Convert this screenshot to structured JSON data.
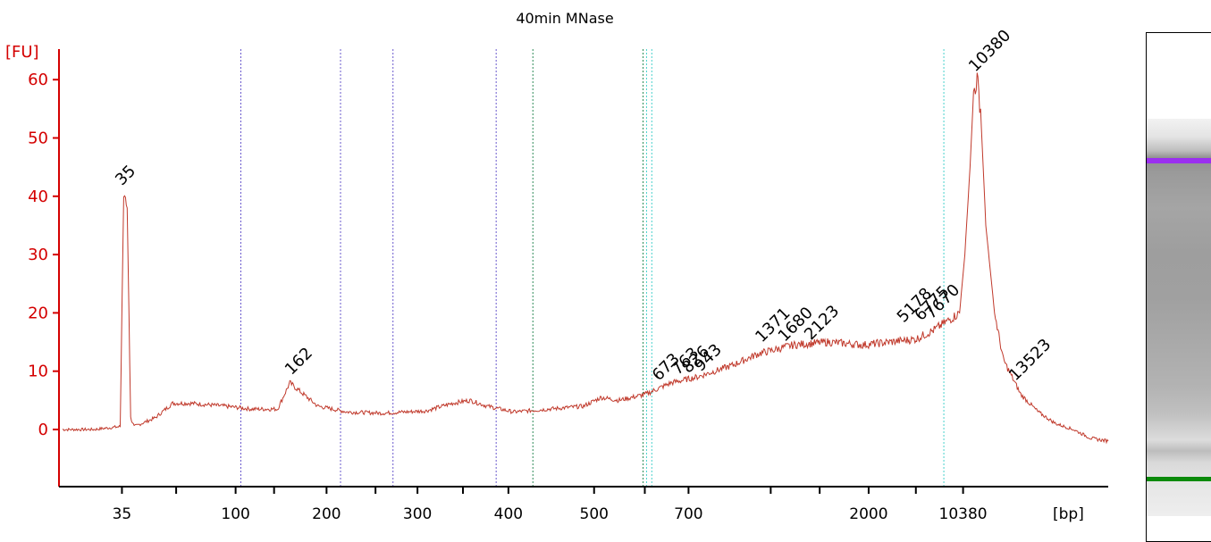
{
  "chart_data": {
    "type": "line",
    "title": "40min MNase",
    "ylabel": "[FU]",
    "xlabel": "[bp]",
    "ylim": [
      -9,
      66
    ],
    "yticks": [
      0,
      10,
      20,
      30,
      40,
      50,
      60
    ],
    "x_tick_labels": [
      {
        "label": "35",
        "t": 36
      },
      {
        "label": "100",
        "t": 101
      },
      {
        "label": "200",
        "t": 153
      },
      {
        "label": "300",
        "t": 205
      },
      {
        "label": "400",
        "t": 257
      },
      {
        "label": "500",
        "t": 306
      },
      {
        "label": "700",
        "t": 360
      },
      {
        "label": "2000",
        "t": 463
      },
      {
        "label": "10380",
        "t": 517
      }
    ],
    "unlabeled_tick_t": [
      67,
      123,
      181,
      231,
      335,
      407,
      435,
      490
    ],
    "series": [
      {
        "color": "#c0392b",
        "points": [
          [
            2,
            0
          ],
          [
            20,
            0
          ],
          [
            35,
            0.5
          ],
          [
            37,
            40
          ],
          [
            38,
            40.5
          ],
          [
            39,
            38
          ],
          [
            41,
            2
          ],
          [
            43,
            0.5
          ],
          [
            55,
            2
          ],
          [
            65,
            4.5
          ],
          [
            75,
            4.5
          ],
          [
            95,
            4
          ],
          [
            110,
            3.5
          ],
          [
            125,
            3.5
          ],
          [
            132,
            8
          ],
          [
            138,
            6.5
          ],
          [
            148,
            4
          ],
          [
            165,
            3
          ],
          [
            185,
            2.8
          ],
          [
            210,
            3.2
          ],
          [
            225,
            4.5
          ],
          [
            235,
            5
          ],
          [
            245,
            4
          ],
          [
            260,
            3
          ],
          [
            280,
            3.5
          ],
          [
            300,
            4
          ],
          [
            310,
            5.5
          ],
          [
            320,
            5
          ],
          [
            335,
            6
          ],
          [
            350,
            8
          ],
          [
            365,
            9
          ],
          [
            385,
            11
          ],
          [
            400,
            13
          ],
          [
            420,
            14.5
          ],
          [
            440,
            15
          ],
          [
            460,
            14.5
          ],
          [
            475,
            15
          ],
          [
            490,
            15.5
          ],
          [
            500,
            17
          ],
          [
            515,
            20
          ],
          [
            518,
            30
          ],
          [
            521,
            45
          ],
          [
            523,
            58
          ],
          [
            525,
            60
          ],
          [
            527,
            55
          ],
          [
            530,
            35
          ],
          [
            535,
            20
          ],
          [
            540,
            12
          ],
          [
            550,
            6
          ],
          [
            560,
            3
          ],
          [
            570,
            1
          ],
          [
            580,
            0
          ],
          [
            590,
            -1.5
          ],
          [
            600,
            -2
          ]
        ]
      }
    ],
    "peaks": [
      {
        "label": "35",
        "t": 37,
        "y": 40.5,
        "color": "#1e8a1e"
      },
      {
        "label": "162",
        "t": 134,
        "y": 8
      },
      {
        "label": "673",
        "t": 344,
        "y": 7
      },
      {
        "label": "763",
        "t": 355,
        "y": 8
      },
      {
        "label": "826",
        "t": 361,
        "y": 8.3
      },
      {
        "label": "943",
        "t": 368,
        "y": 8.6
      },
      {
        "label": "1371",
        "t": 403,
        "y": 13.6
      },
      {
        "label": "1680",
        "t": 416,
        "y": 13.7
      },
      {
        "label": "2123",
        "t": 431,
        "y": 14
      },
      {
        "label": "5178",
        "t": 484,
        "y": 17
      },
      {
        "label": "6775",
        "t": 494,
        "y": 17.3
      },
      {
        "label": "7670",
        "t": 500,
        "y": 17.6
      },
      {
        "label": "10380",
        "t": 525,
        "y": 60,
        "color": "#9b2ff0"
      },
      {
        "label": "13523",
        "t": 548,
        "y": 7
      }
    ],
    "marker_lines_t": [
      {
        "t": 104,
        "color": "#6a5acd"
      },
      {
        "t": 161,
        "color": "#6a5acd"
      },
      {
        "t": 191,
        "color": "#6a5acd"
      },
      {
        "t": 250,
        "color": "#6a5acd"
      },
      {
        "t": 271,
        "color": "#2e8b57"
      },
      {
        "t": 334,
        "color": "#2e8b57"
      },
      {
        "t": 336,
        "color": "#48d1cc"
      },
      {
        "t": 339,
        "color": "#48d1cc"
      },
      {
        "t": 506,
        "color": "#48d1cc"
      }
    ]
  },
  "gel": {
    "upper_marker_color": "#9b2ff0",
    "lower_marker_color": "#0a8a0a"
  }
}
